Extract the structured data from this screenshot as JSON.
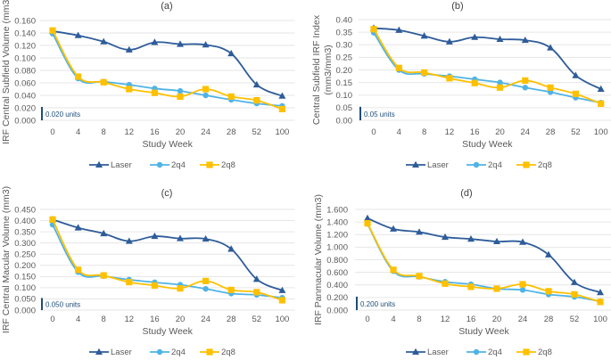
{
  "colors": {
    "Laser": "#2e5c9a",
    "2q4": "#4fb3e6",
    "2q8": "#ffc000",
    "grid": "#e6e6e6",
    "unitbar": "#1f4e79"
  },
  "chart_data": [
    {
      "type": "line",
      "title": "(a)",
      "xlabel": "Study Week",
      "ylabel": "IRF Central Subfield Volume (mm3)",
      "categories": [
        "0",
        "4",
        "8",
        "12",
        "16",
        "20",
        "24",
        "28",
        "52",
        "100"
      ],
      "yticks": [
        "0.000",
        "0.020",
        "0.040",
        "0.060",
        "0.080",
        "0.100",
        "0.120",
        "0.140",
        "0.160"
      ],
      "ylim": [
        0,
        0.16
      ],
      "grid": true,
      "legend": "bottom",
      "unit_label": "0.020 units",
      "series": [
        {
          "name": "Laser",
          "marker": "triangle",
          "values": [
            0.143,
            0.136,
            0.126,
            0.113,
            0.125,
            0.122,
            0.121,
            0.107,
            0.057,
            0.039
          ]
        },
        {
          "name": "2q4",
          "marker": "circle",
          "values": [
            0.139,
            0.067,
            0.062,
            0.057,
            0.051,
            0.047,
            0.04,
            0.033,
            0.027,
            0.023
          ]
        },
        {
          "name": "2q8",
          "marker": "square",
          "values": [
            0.144,
            0.07,
            0.061,
            0.05,
            0.044,
            0.038,
            0.05,
            0.038,
            0.032,
            0.018
          ]
        }
      ]
    },
    {
      "type": "line",
      "title": "(b)",
      "xlabel": "Study Week",
      "ylabel": "Central Subfield IRF Index",
      "ylabel2": "(mm3/mm3)",
      "categories": [
        "0",
        "4",
        "8",
        "12",
        "16",
        "20",
        "24",
        "28",
        "52",
        "100"
      ],
      "yticks": [
        "0.00",
        "0.05",
        "0.10",
        "0.15",
        "0.20",
        "0.25",
        "0.30",
        "0.35",
        "0.40"
      ],
      "ylim": [
        0,
        0.4
      ],
      "grid": true,
      "legend": "bottom",
      "unit_label": "0.05 units",
      "series": [
        {
          "name": "Laser",
          "marker": "triangle",
          "values": [
            0.366,
            0.358,
            0.335,
            0.312,
            0.33,
            0.322,
            0.318,
            0.288,
            0.178,
            0.124
          ]
        },
        {
          "name": "2q4",
          "marker": "circle",
          "values": [
            0.348,
            0.2,
            0.185,
            0.175,
            0.163,
            0.15,
            0.13,
            0.112,
            0.09,
            0.07
          ]
        },
        {
          "name": "2q8",
          "marker": "square",
          "values": [
            0.362,
            0.208,
            0.19,
            0.167,
            0.148,
            0.13,
            0.158,
            0.13,
            0.105,
            0.066
          ]
        }
      ]
    },
    {
      "type": "line",
      "title": "(c)",
      "xlabel": "Study Week",
      "ylabel": "IRF Central Macular Volume (mm3)",
      "categories": [
        "0",
        "4",
        "8",
        "12",
        "16",
        "20",
        "24",
        "28",
        "52",
        "100"
      ],
      "yticks": [
        "0.000",
        "0.050",
        "0.100",
        "0.150",
        "0.200",
        "0.250",
        "0.300",
        "0.350",
        "0.400",
        "0.450"
      ],
      "ylim": [
        0,
        0.45
      ],
      "grid": true,
      "legend": "bottom",
      "unit_label": "0.050 units",
      "series": [
        {
          "name": "Laser",
          "marker": "triangle",
          "values": [
            0.405,
            0.368,
            0.342,
            0.308,
            0.33,
            0.32,
            0.318,
            0.273,
            0.138,
            0.088
          ]
        },
        {
          "name": "2q4",
          "marker": "circle",
          "values": [
            0.382,
            0.17,
            0.152,
            0.136,
            0.124,
            0.113,
            0.095,
            0.074,
            0.068,
            0.055
          ]
        },
        {
          "name": "2q8",
          "marker": "square",
          "values": [
            0.405,
            0.18,
            0.155,
            0.125,
            0.11,
            0.097,
            0.13,
            0.09,
            0.08,
            0.044
          ]
        }
      ]
    },
    {
      "type": "line",
      "title": "(d)",
      "xlabel": "Study Week",
      "ylabel": "IRF Panmacular Volume (mm3)",
      "categories": [
        "0",
        "4",
        "8",
        "12",
        "16",
        "20",
        "24",
        "28",
        "52",
        "100"
      ],
      "yticks": [
        "0.000",
        "0.200",
        "0.400",
        "0.600",
        "0.800",
        "1.000",
        "1.200",
        "1.400",
        "1.600"
      ],
      "ylim": [
        0,
        1.6
      ],
      "grid": true,
      "legend": "bottom",
      "unit_label": "0.200 units",
      "series": [
        {
          "name": "Laser",
          "marker": "triangle",
          "values": [
            1.46,
            1.29,
            1.24,
            1.16,
            1.13,
            1.09,
            1.08,
            0.88,
            0.44,
            0.28
          ]
        },
        {
          "name": "2q4",
          "marker": "circle",
          "values": [
            1.37,
            0.62,
            0.53,
            0.45,
            0.41,
            0.34,
            0.32,
            0.25,
            0.21,
            0.14
          ]
        },
        {
          "name": "2q8",
          "marker": "square",
          "values": [
            1.38,
            0.64,
            0.54,
            0.42,
            0.37,
            0.34,
            0.41,
            0.3,
            0.25,
            0.13
          ]
        }
      ]
    }
  ]
}
